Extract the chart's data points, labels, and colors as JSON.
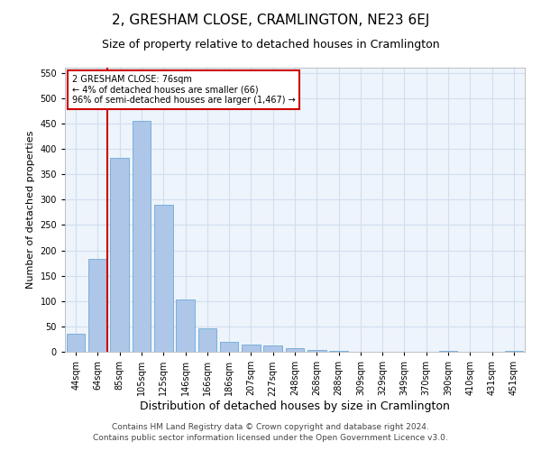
{
  "title": "2, GRESHAM CLOSE, CRAMLINGTON, NE23 6EJ",
  "subtitle": "Size of property relative to detached houses in Cramlington",
  "xlabel": "Distribution of detached houses by size in Cramlington",
  "ylabel": "Number of detached properties",
  "categories": [
    "44sqm",
    "64sqm",
    "85sqm",
    "105sqm",
    "125sqm",
    "146sqm",
    "166sqm",
    "186sqm",
    "207sqm",
    "227sqm",
    "248sqm",
    "268sqm",
    "288sqm",
    "309sqm",
    "329sqm",
    "349sqm",
    "370sqm",
    "390sqm",
    "410sqm",
    "431sqm",
    "451sqm"
  ],
  "values": [
    35,
    183,
    383,
    455,
    290,
    103,
    47,
    20,
    15,
    12,
    8,
    3,
    1,
    0,
    0,
    0,
    0,
    1,
    0,
    0,
    1
  ],
  "bar_color": "#aec6e8",
  "bar_edge_color": "#5a9fd4",
  "grid_color": "#d0dff0",
  "background_color": "#eef4fb",
  "redline_x": 1.42,
  "annotation_text": "2 GRESHAM CLOSE: 76sqm\n← 4% of detached houses are smaller (66)\n96% of semi-detached houses are larger (1,467) →",
  "annotation_box_color": "#ffffff",
  "annotation_box_edge": "#cc0000",
  "annotation_text_color": "#000000",
  "redline_color": "#cc0000",
  "ylim": [
    0,
    560
  ],
  "yticks": [
    0,
    50,
    100,
    150,
    200,
    250,
    300,
    350,
    400,
    450,
    500,
    550
  ],
  "footer1": "Contains HM Land Registry data © Crown copyright and database right 2024.",
  "footer2": "Contains public sector information licensed under the Open Government Licence v3.0.",
  "title_fontsize": 11,
  "subtitle_fontsize": 9,
  "xlabel_fontsize": 9,
  "ylabel_fontsize": 8,
  "tick_fontsize": 7,
  "footer_fontsize": 6.5,
  "annotation_fontsize": 7
}
